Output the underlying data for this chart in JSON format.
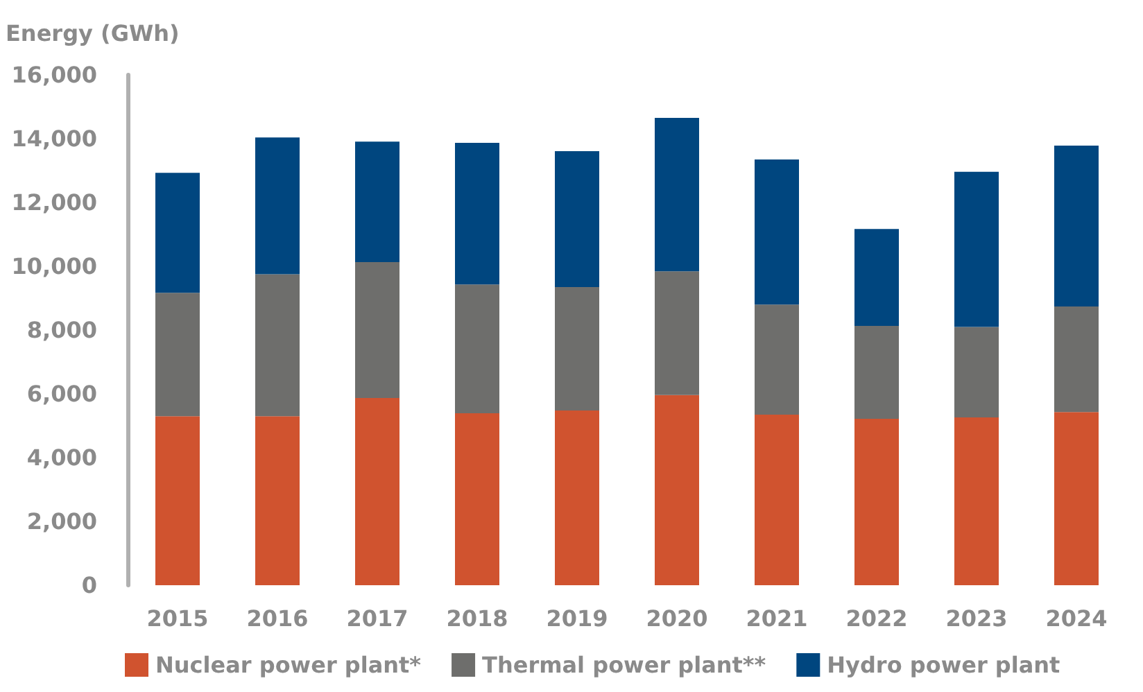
{
  "chart_data": {
    "type": "bar",
    "stacked": true,
    "ylabel": "Energy (GWh)",
    "categories": [
      "2015",
      "2016",
      "2017",
      "2018",
      "2019",
      "2020",
      "2021",
      "2022",
      "2023",
      "2024"
    ],
    "series": [
      {
        "name": "Nuclear power plant*",
        "color": "#d0532f",
        "values": [
          5300,
          5300,
          5870,
          5390,
          5480,
          5960,
          5350,
          5220,
          5260,
          5430
        ]
      },
      {
        "name": "Thermal power plant**",
        "color": "#6e6e6c",
        "values": [
          3870,
          4450,
          4260,
          4040,
          3870,
          3880,
          3450,
          2910,
          2840,
          3310
        ]
      },
      {
        "name": "Hydro power plant",
        "color": "#00467f",
        "values": [
          3760,
          4290,
          3780,
          4440,
          4260,
          4810,
          4550,
          3040,
          4860,
          5040
        ]
      }
    ],
    "ylim": [
      0,
      16000
    ],
    "yticks": [
      0,
      {
        "value": 2000,
        "label": "2,000"
      },
      {
        "value": 4000,
        "label": "4,000"
      },
      {
        "value": 6000,
        "label": "6,000"
      },
      {
        "value": 8000,
        "label": "8,000"
      },
      {
        "value": 10000,
        "label": "10,000"
      },
      {
        "value": 12000,
        "label": "12,000"
      },
      {
        "value": 14000,
        "label": "14,000"
      },
      {
        "value": 16000,
        "label": "16,000"
      }
    ],
    "grid": false,
    "legend": "bottom left"
  }
}
